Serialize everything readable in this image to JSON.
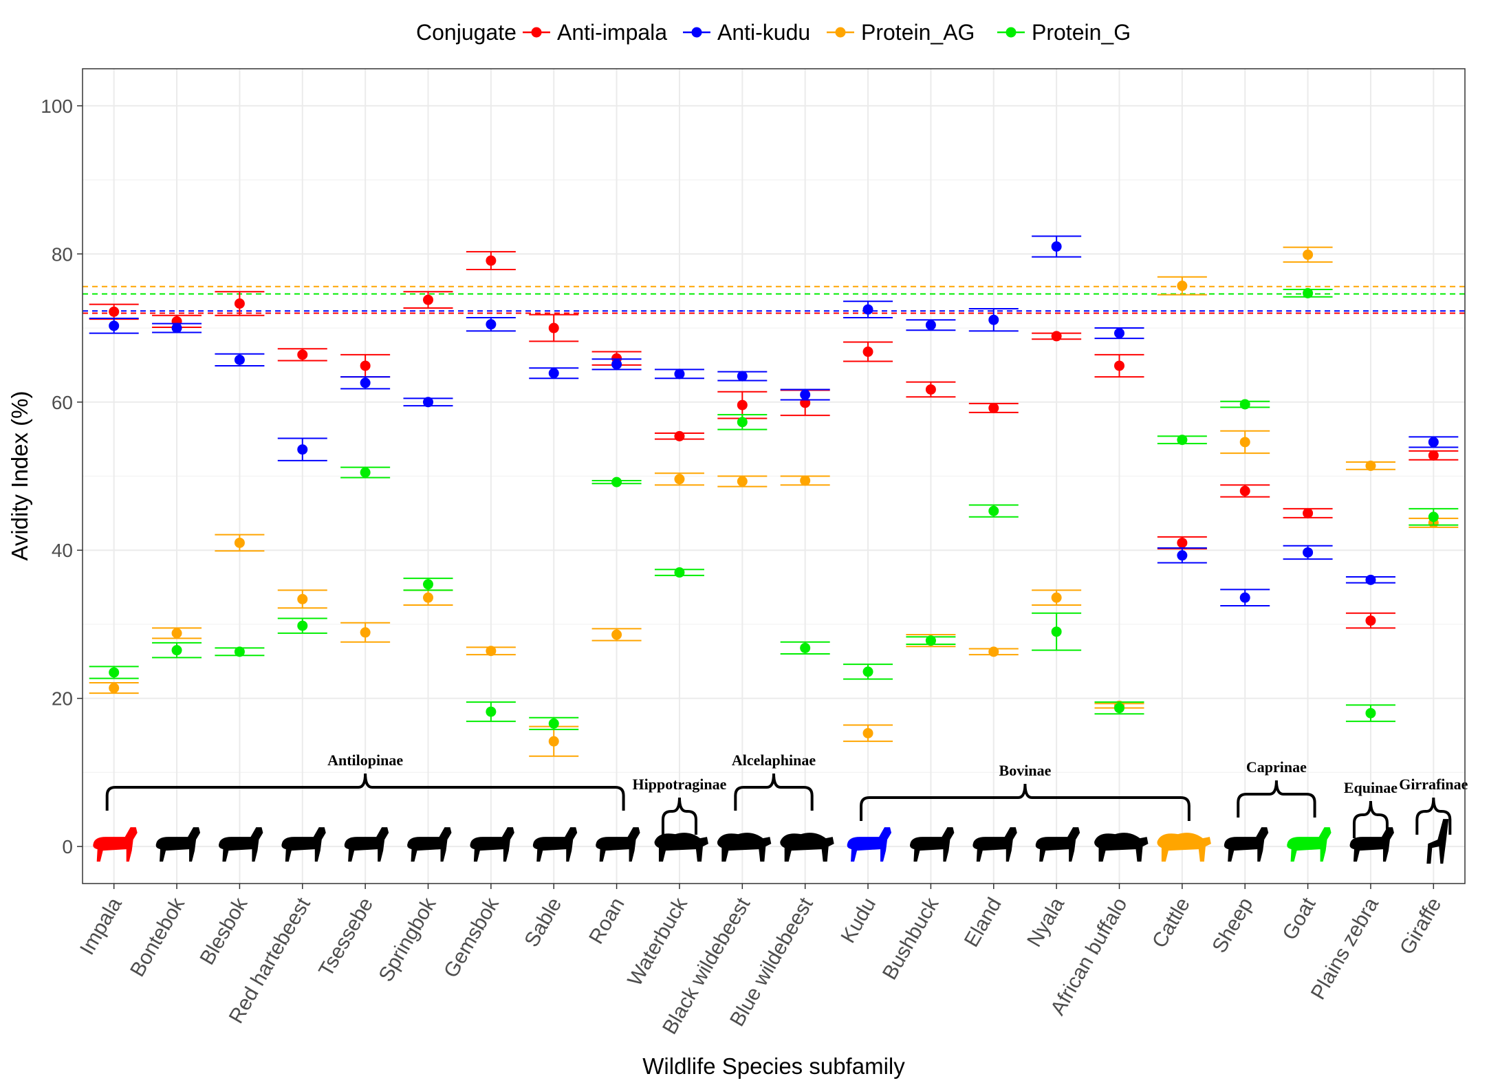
{
  "chart_data": {
    "type": "scatter",
    "subtype": "point-with-error-bars",
    "xlabel": "Wildlife Species subfamily",
    "ylabel": "Avidity Index (%)",
    "ylim": [
      -5,
      105
    ],
    "yticks": [
      0,
      20,
      40,
      60,
      80,
      100
    ],
    "grid": true,
    "legend": {
      "title": "Conjugate",
      "position": "top"
    },
    "categories": [
      "Impala",
      "Bontebok",
      "Blesbok",
      "Red hartebeest",
      "Tsessebe",
      "Springbok",
      "Gemsbok",
      "Sable",
      "Roan",
      "Waterbuck",
      "Black wildebeest",
      "Blue wildebeest",
      "Kudu",
      "Bushbuck",
      "Eland",
      "Nyala",
      "African buffalo",
      "Cattle",
      "Sheep",
      "Goat",
      "Plains zebra",
      "Giraffe"
    ],
    "series": [
      {
        "name": "Anti-impala",
        "color": "#ff0000",
        "reference_line": 72.0,
        "values": [
          72.2,
          70.9,
          73.3,
          66.4,
          64.9,
          73.8,
          79.1,
          70.0,
          65.9,
          55.4,
          59.6,
          59.9,
          66.8,
          61.7,
          59.2,
          68.9,
          64.9,
          41.0,
          48.0,
          45.0,
          30.5,
          52.8
        ],
        "err": [
          1.0,
          0.8,
          1.6,
          0.8,
          1.5,
          1.1,
          1.2,
          1.8,
          0.9,
          0.4,
          1.8,
          1.7,
          1.3,
          1.0,
          0.6,
          0.4,
          1.5,
          0.8,
          0.8,
          0.6,
          1.0,
          0.6
        ]
      },
      {
        "name": "Anti-kudu",
        "color": "#0000ff",
        "reference_line": 72.3,
        "values": [
          70.3,
          70.0,
          65.7,
          53.6,
          62.6,
          60.0,
          70.5,
          63.9,
          65.1,
          63.8,
          63.5,
          61.0,
          72.5,
          70.4,
          71.1,
          81.0,
          69.3,
          39.3,
          33.6,
          39.7,
          36.0,
          54.6
        ],
        "err": [
          1.0,
          0.6,
          0.8,
          1.5,
          0.8,
          0.5,
          0.9,
          0.7,
          0.7,
          0.6,
          0.6,
          0.7,
          1.1,
          0.7,
          1.5,
          1.4,
          0.7,
          1.0,
          1.1,
          0.9,
          0.4,
          0.7
        ]
      },
      {
        "name": "Protein_AG",
        "color": "#ffa500",
        "reference_line": 75.6,
        "values": [
          21.4,
          28.8,
          41.0,
          33.4,
          28.9,
          33.6,
          26.4,
          14.2,
          28.6,
          49.6,
          49.3,
          49.4,
          15.3,
          27.8,
          26.3,
          33.6,
          19.0,
          75.7,
          54.6,
          79.9,
          51.4,
          43.7
        ],
        "err": [
          0.7,
          0.7,
          1.1,
          1.2,
          1.3,
          1.0,
          0.5,
          2.0,
          0.8,
          0.8,
          0.7,
          0.6,
          1.1,
          0.8,
          0.4,
          1.0,
          0.3,
          1.2,
          1.5,
          1.0,
          0.5,
          0.6
        ]
      },
      {
        "name": "Protein_G",
        "color": "#00ee00",
        "reference_line": 74.6,
        "values": [
          23.5,
          26.5,
          26.3,
          29.8,
          50.5,
          35.4,
          18.2,
          16.6,
          49.2,
          37.0,
          57.3,
          26.8,
          23.6,
          27.8,
          45.3,
          29.0,
          18.7,
          54.9,
          59.7,
          74.7,
          18.0,
          44.5
        ],
        "err": [
          0.8,
          1.0,
          0.5,
          1.0,
          0.7,
          0.8,
          1.3,
          0.8,
          0.2,
          0.4,
          1.0,
          0.8,
          1.0,
          0.5,
          0.8,
          2.5,
          0.8,
          0.5,
          0.4,
          0.5,
          1.1,
          1.1
        ]
      }
    ],
    "annotations": [
      {
        "label": "Antilopinae",
        "from": "Impala",
        "to": "Roan"
      },
      {
        "label": "Hippotraginae",
        "from": "Waterbuck",
        "to": "Waterbuck"
      },
      {
        "label": "Alcelaphinae",
        "from": "Black wildebeest",
        "to": "Blue wildebeest"
      },
      {
        "label": "Bovinae",
        "from": "Kudu",
        "to": "Cattle"
      },
      {
        "label": "Caprinae",
        "from": "Sheep",
        "to": "Goat"
      },
      {
        "label": "Equinae",
        "from": "Plains zebra",
        "to": "Plains zebra"
      },
      {
        "label": "Girrafinae",
        "from": "Giraffe",
        "to": "Giraffe"
      }
    ],
    "silhouette_colors": [
      "#ff0000",
      "#000000",
      "#000000",
      "#000000",
      "#000000",
      "#000000",
      "#000000",
      "#000000",
      "#000000",
      "#000000",
      "#000000",
      "#000000",
      "#0000ff",
      "#000000",
      "#000000",
      "#000000",
      "#000000",
      "#ffa500",
      "#000000",
      "#00ee00",
      "#000000",
      "#000000"
    ]
  }
}
